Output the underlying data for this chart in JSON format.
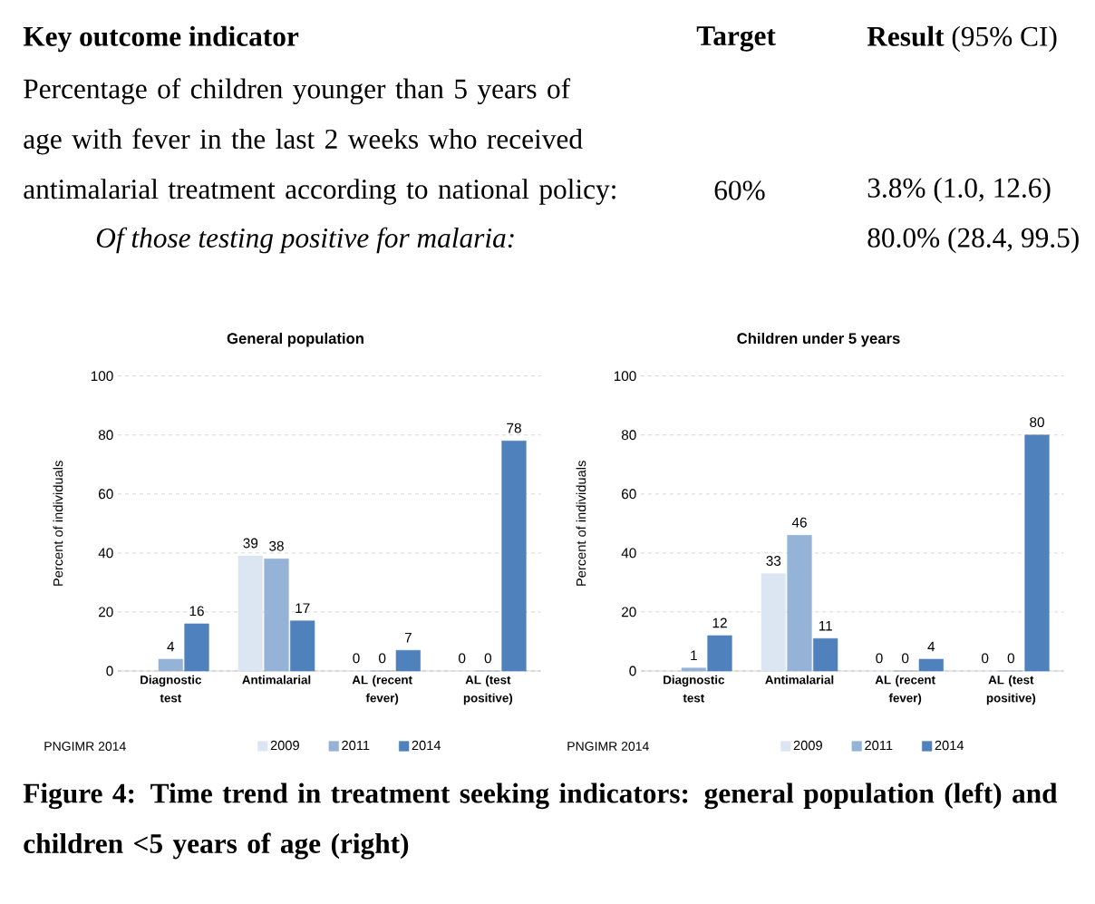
{
  "chart_data": [
    {
      "type": "bar",
      "title": "General population",
      "ylabel": "Percent of individuals",
      "categories": [
        "Diagnostic test",
        "Antimalarial",
        "AL (recent fever)",
        "AL (test positive)"
      ],
      "series": [
        {
          "name": "2009",
          "color": "#dce6f2",
          "values": [
            null,
            39,
            0,
            0
          ]
        },
        {
          "name": "2011",
          "color": "#95b3d7",
          "values": [
            4,
            38,
            0,
            0
          ]
        },
        {
          "name": "2014",
          "color": "#4f81bd",
          "values": [
            16,
            17,
            7,
            78
          ]
        }
      ],
      "ylim": [
        0,
        100
      ],
      "yticks": [
        0,
        20,
        40,
        60,
        80,
        100
      ],
      "grid": "y",
      "legend": "bottom",
      "data_labels": true,
      "annotations": [
        "Key outcome indicator",
        "Target",
        "**Result** (95% CI)",
        "Percentage of children younger than 5 years of age with fever in the last 2 weeks who received antimalarial treatment according to national policy:",
        "60%",
        "3.8% (1.0, 12.6)",
        "Of those testing positive for malaria:",
        "80.0% (28.4, 99.5)",
        "PNGIMR 2014",
        "Figure 4: Time trend in treatment seeking indicators: general population (left) and children <5 years of age (right)"
      ]
    },
    {
      "type": "bar",
      "title": "Children under 5 years",
      "ylabel": "Percent of individuals",
      "categories": [
        "Diagnostic test",
        "Antimalarial",
        "AL (recent fever)",
        "AL (test positive)"
      ],
      "series": [
        {
          "name": "2009",
          "color": "#dce6f2",
          "values": [
            null,
            33,
            0,
            0
          ]
        },
        {
          "name": "2011",
          "color": "#95b3d7",
          "values": [
            1,
            46,
            0,
            0
          ]
        },
        {
          "name": "2014",
          "color": "#4f81bd",
          "values": [
            12,
            11,
            4,
            80
          ]
        }
      ],
      "ylim": [
        0,
        100
      ],
      "yticks": [
        0,
        20,
        40,
        60,
        80,
        100
      ],
      "grid": "y",
      "legend": "bottom",
      "data_labels": true,
      "annotations": [
        "PNGIMR 2014"
      ]
    }
  ]
}
